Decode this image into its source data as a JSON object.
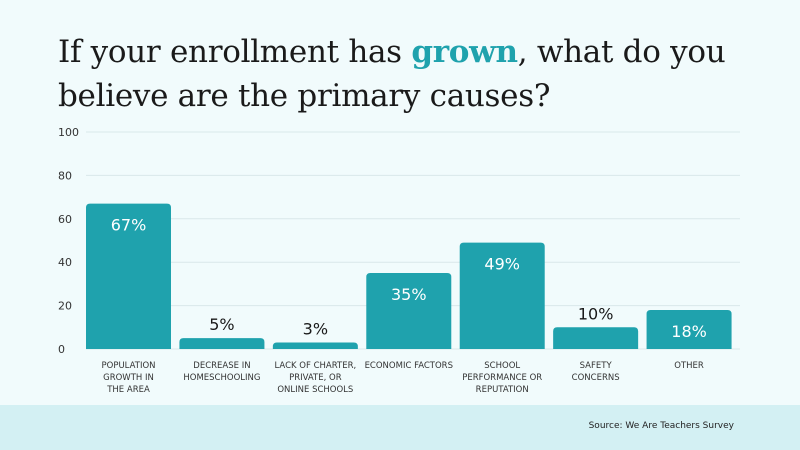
{
  "title": {
    "before": "If your enrollment has ",
    "highlight": "grown",
    "after": ", what do you believe are the primary causes?"
  },
  "source": "Source: We Are Teachers Survey",
  "colors": {
    "bar": "#1fa2ad",
    "highlight": "#1fa2ad",
    "footer": "#d3f0f3",
    "background": "#f1fbfc"
  },
  "chart_data": {
    "type": "bar",
    "categories": [
      [
        "POPULATION",
        "GROWTH IN",
        "THE AREA"
      ],
      [
        "DECREASE IN",
        "HOMESCHOOLING"
      ],
      [
        "LACK OF CHARTER,",
        "PRIVATE, OR",
        "ONLINE SCHOOLS"
      ],
      [
        "ECONOMIC FACTORS"
      ],
      [
        "SCHOOL",
        "PERFORMANCE OR",
        "REPUTATION"
      ],
      [
        "SAFETY",
        "CONCERNS"
      ],
      [
        "OTHER"
      ]
    ],
    "values": [
      67,
      5,
      3,
      35,
      49,
      10,
      18
    ],
    "data_labels": [
      "67%",
      "5%",
      "3%",
      "35%",
      "49%",
      "10%",
      "18%"
    ],
    "ylim": [
      0,
      100
    ],
    "yticks": [
      0,
      20,
      40,
      60,
      80,
      100
    ],
    "grid": true,
    "legend": "none"
  }
}
